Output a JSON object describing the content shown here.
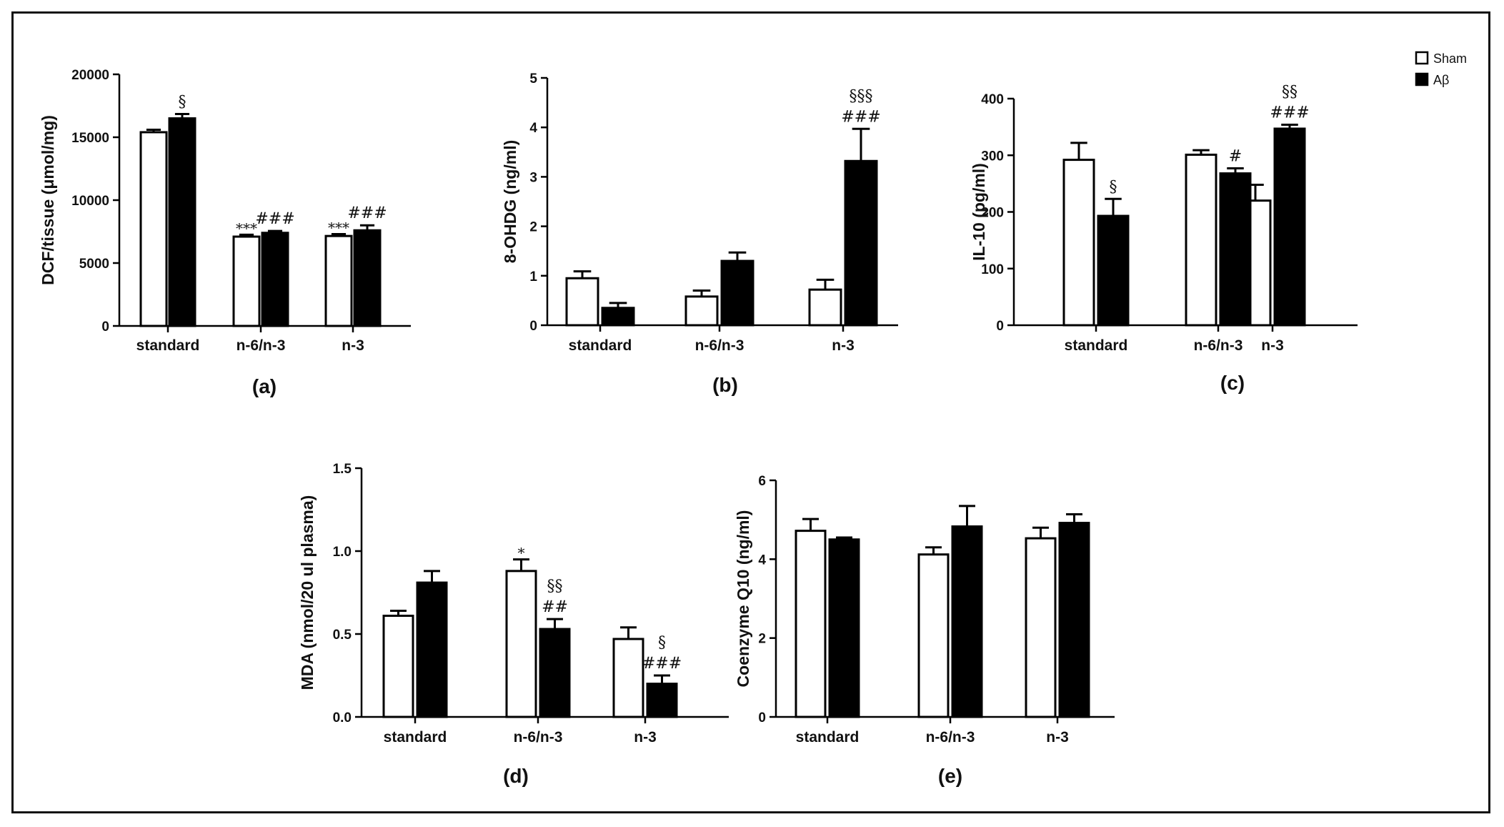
{
  "colors": {
    "sham_fill": "#ffffff",
    "abeta_fill": "#000000",
    "stroke": "#000000"
  },
  "legend": {
    "sham": "Sham",
    "abeta": "Aβ"
  },
  "chart_data": [
    {
      "panel": "(a)",
      "type": "bar",
      "ylabel": "DCF/tissue (μmol/mg)",
      "categories": [
        "standard",
        "n-6/n-3",
        "n-3"
      ],
      "ylim": [
        0,
        20000
      ],
      "yticks": [
        0,
        5000,
        10000,
        15000,
        20000
      ],
      "series": [
        {
          "name": "Sham",
          "values": [
            15400,
            7100,
            7150
          ],
          "errors": [
            200,
            150,
            150
          ],
          "annotations": [
            "",
            "***",
            "***"
          ]
        },
        {
          "name": "Aβ",
          "values": [
            16500,
            7400,
            7600
          ],
          "errors": [
            350,
            150,
            400
          ],
          "annotations": [
            "§",
            "###",
            "###"
          ]
        }
      ]
    },
    {
      "panel": "(b)",
      "type": "bar",
      "ylabel": "8-OHDG (ng/ml)",
      "categories": [
        "standard",
        "n-6/n-3",
        "n-3"
      ],
      "ylim": [
        0,
        5
      ],
      "yticks": [
        0,
        1,
        2,
        3,
        4,
        5
      ],
      "series": [
        {
          "name": "Sham",
          "values": [
            0.95,
            0.58,
            0.72
          ],
          "errors": [
            0.14,
            0.12,
            0.2
          ],
          "annotations": [
            "",
            "",
            ""
          ]
        },
        {
          "name": "Aβ",
          "values": [
            0.35,
            1.3,
            3.32
          ],
          "errors": [
            0.1,
            0.17,
            0.65
          ],
          "annotations": [
            "",
            "",
            "§§§\n###"
          ]
        }
      ]
    },
    {
      "panel": "(c)",
      "type": "bar",
      "ylabel": "IL-10 (pg/ml)",
      "categories": [
        "standard",
        "n-6/n-3",
        "n-3"
      ],
      "ylim": [
        0,
        400
      ],
      "yticks": [
        0,
        100,
        200,
        300,
        400
      ],
      "series": [
        {
          "name": "Sham",
          "values": [
            292,
            301,
            220
          ],
          "errors": [
            30,
            8,
            28
          ],
          "annotations": [
            "",
            "",
            ""
          ]
        },
        {
          "name": "Aβ",
          "values": [
            193,
            268,
            347
          ],
          "errors": [
            30,
            9,
            7
          ],
          "annotations": [
            "§",
            "#",
            "§§\n###"
          ]
        }
      ]
    },
    {
      "panel": "(d)",
      "type": "bar",
      "ylabel": "MDA (nmol/20 ul plasma)",
      "categories": [
        "standard",
        "n-6/n-3",
        "n-3"
      ],
      "ylim": [
        0,
        1.5
      ],
      "yticks": [
        "0.0",
        "0.5",
        "1.0",
        "1.5"
      ],
      "series": [
        {
          "name": "Sham",
          "values": [
            0.61,
            0.88,
            0.47
          ],
          "errors": [
            0.03,
            0.07,
            0.07
          ],
          "annotations": [
            "",
            "*",
            ""
          ]
        },
        {
          "name": "Aβ",
          "values": [
            0.81,
            0.53,
            0.2
          ],
          "errors": [
            0.07,
            0.06,
            0.05
          ],
          "annotations": [
            "",
            "§§\n##",
            "§\n###"
          ]
        }
      ]
    },
    {
      "panel": "(e)",
      "type": "bar",
      "ylabel": "Coenzyme Q10 (ng/ml)",
      "categories": [
        "standard",
        "n-6/n-3",
        "n-3"
      ],
      "ylim": [
        0,
        6
      ],
      "yticks": [
        0,
        2,
        4,
        6
      ],
      "series": [
        {
          "name": "Sham",
          "values": [
            4.72,
            4.12,
            4.53
          ],
          "errors": [
            0.3,
            0.18,
            0.27
          ],
          "annotations": [
            "",
            "",
            ""
          ]
        },
        {
          "name": "Aβ",
          "values": [
            4.5,
            4.83,
            4.92
          ],
          "errors": [
            0.05,
            0.52,
            0.22
          ],
          "annotations": [
            "",
            "",
            ""
          ]
        }
      ]
    }
  ]
}
